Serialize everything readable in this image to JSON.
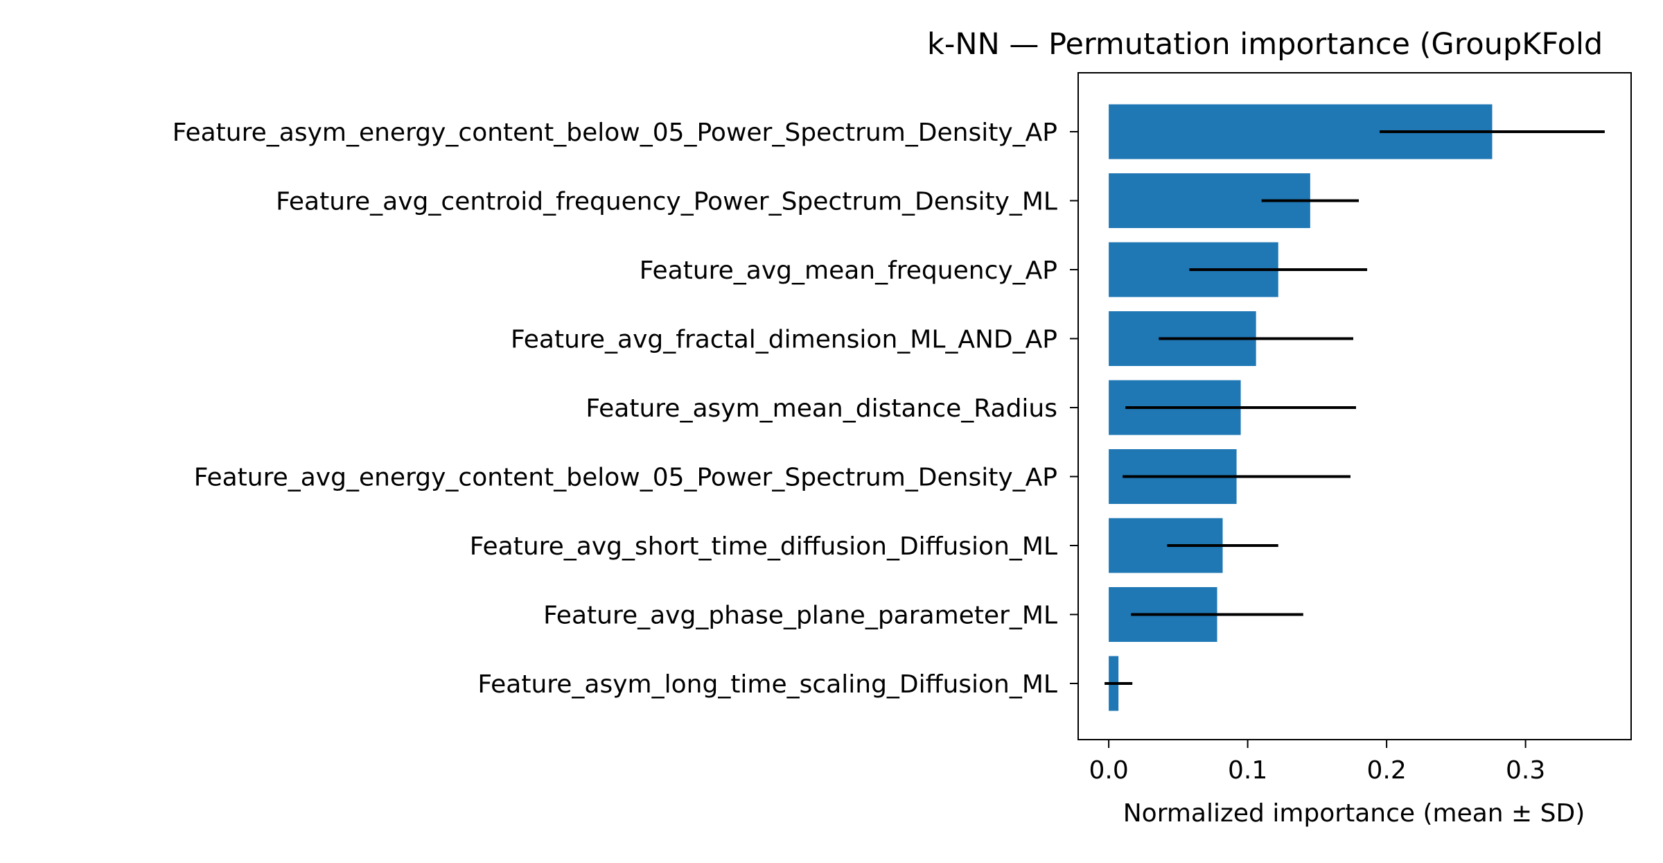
{
  "chart_data": {
    "type": "bar",
    "orientation": "horizontal",
    "title": "k-NN — Permutation importance (GroupKFold",
    "xlabel": "Normalized importance (mean ± SD)",
    "ylabel": "",
    "xlim": [
      -0.022,
      0.376
    ],
    "xticks": [
      0.0,
      0.1,
      0.2,
      0.3
    ],
    "xtick_labels": [
      "0.0",
      "0.1",
      "0.2",
      "0.3"
    ],
    "grid": false,
    "bar_color": "#1f77b4",
    "error_color": "#000000",
    "categories": [
      "Feature_asym_energy_content_below_05_Power_Spectrum_Density_AP",
      "Feature_avg_centroid_frequency_Power_Spectrum_Density_ML",
      "Feature_avg_mean_frequency_AP",
      "Feature_avg_fractal_dimension_ML_AND_AP",
      "Feature_asym_mean_distance_Radius",
      "Feature_avg_energy_content_below_05_Power_Spectrum_Density_AP",
      "Feature_avg_short_time_diffusion_Diffusion_ML",
      "Feature_avg_phase_plane_parameter_ML",
      "Feature_asym_long_time_scaling_Diffusion_ML"
    ],
    "values": [
      0.276,
      0.145,
      0.122,
      0.106,
      0.095,
      0.092,
      0.082,
      0.078,
      0.007
    ],
    "errors": [
      0.081,
      0.035,
      0.064,
      0.07,
      0.083,
      0.082,
      0.04,
      0.062,
      0.01
    ]
  }
}
